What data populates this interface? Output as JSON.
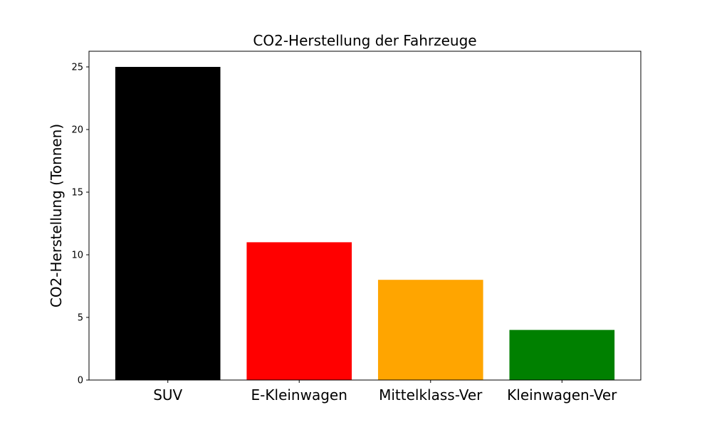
{
  "chart_data": {
    "type": "bar",
    "title": "CO2-Herstellung der Fahrzeuge",
    "xlabel": "",
    "ylabel": "CO2-Herstellung (Tonnen)",
    "categories": [
      "SUV",
      "E-Kleinwagen",
      "Mittelklass-Ver",
      "Kleinwagen-Ver"
    ],
    "values": [
      25,
      11,
      8,
      4
    ],
    "colors": [
      "#000000",
      "#ff0000",
      "#ffa500",
      "#008000"
    ],
    "ylim": [
      0,
      26.25
    ],
    "yticks": [
      0,
      5,
      10,
      15,
      20,
      25
    ],
    "grid": false
  }
}
